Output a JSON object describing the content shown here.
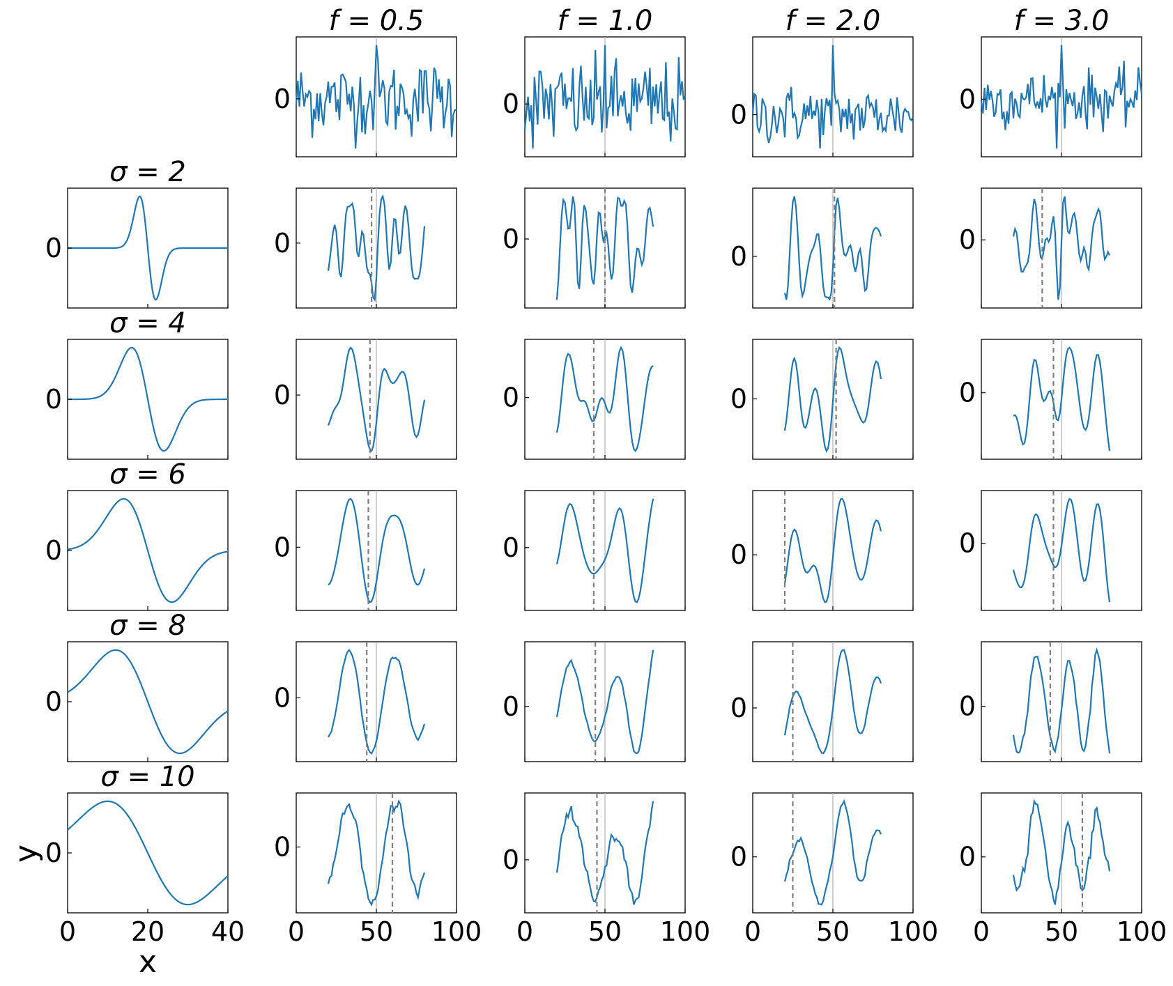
{
  "figure": {
    "xlabel": "x",
    "ylabel": "y",
    "line_color": "#1f77b4",
    "center_line_color": "#b0b0b0",
    "peak_line_color": "#808080"
  },
  "chart_data": {
    "type": "line",
    "description_of_layout": "grid",
    "column_titles": [
      "f = 0.5",
      "f = 1.0",
      "f = 2.0",
      "f = 3.0"
    ],
    "row_titles": [
      "σ = 2",
      "σ = 4",
      "σ = 6",
      "σ = 8",
      "σ = 10"
    ],
    "kernel_xlim": [
      0,
      40
    ],
    "kernel_xticks": [
      0,
      20,
      40
    ],
    "signal_xlim": [
      0,
      100
    ],
    "signal_xticks": [
      0,
      50,
      100
    ],
    "yticks": [
      0
    ],
    "center_x": 50,
    "filtered_x_range": [
      20,
      80
    ],
    "peak_markers": [
      [
        47,
        50,
        51,
        38
      ],
      [
        46,
        43,
        52,
        45
      ],
      [
        45,
        43,
        20,
        45
      ],
      [
        44,
        44,
        25,
        43
      ],
      [
        60,
        45,
        25,
        63
      ]
    ]
  }
}
